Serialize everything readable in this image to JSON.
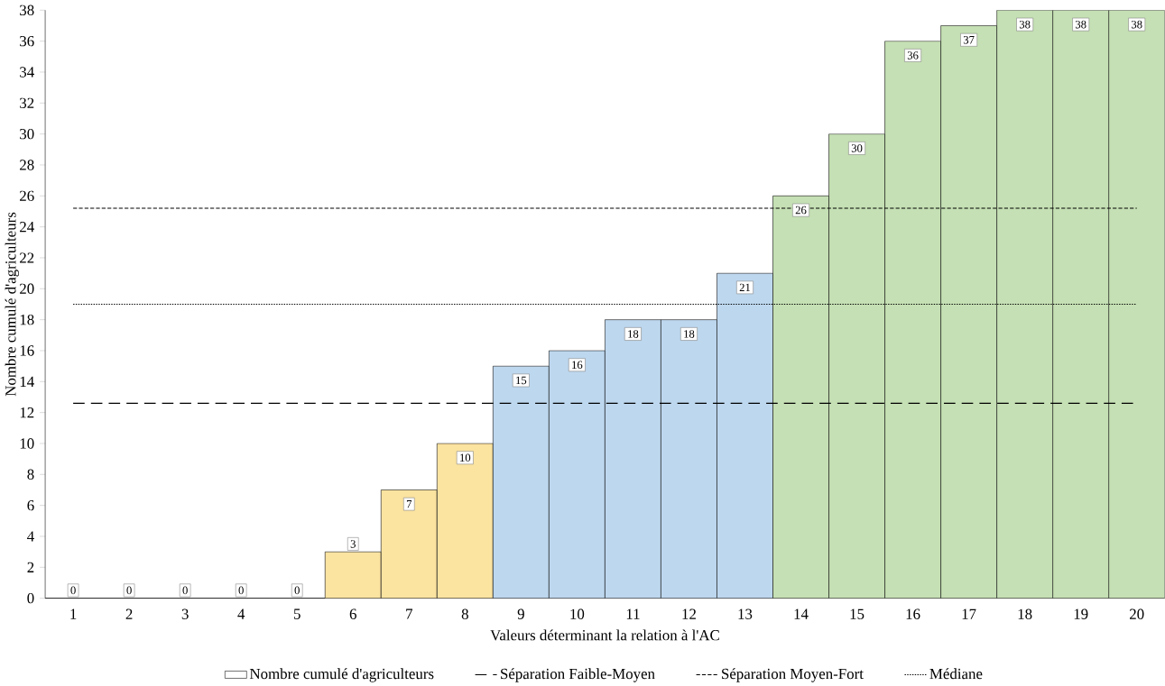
{
  "chart_data": {
    "type": "bar",
    "xlabel": "Valeurs déterminant la relation à l'AC",
    "ylabel": "Nombre cumulé d'agriculteurs",
    "categories": [
      "1",
      "2",
      "3",
      "4",
      "5",
      "6",
      "7",
      "8",
      "9",
      "10",
      "11",
      "12",
      "13",
      "14",
      "15",
      "16",
      "17",
      "18",
      "19",
      "20"
    ],
    "series": [
      {
        "name": "Nombre cumulé d'agriculteurs",
        "values": [
          0,
          0,
          0,
          0,
          0,
          3,
          7,
          10,
          15,
          16,
          18,
          18,
          21,
          26,
          30,
          36,
          37,
          38,
          38,
          38
        ],
        "colors": [
          "#ffffff",
          "#ffffff",
          "#ffffff",
          "#ffffff",
          "#ffffff",
          "#fbe3a0",
          "#fbe3a0",
          "#fbe3a0",
          "#bdd7ee",
          "#bdd7ee",
          "#bdd7ee",
          "#bdd7ee",
          "#bdd7ee",
          "#c5e0b4",
          "#c5e0b4",
          "#c5e0b4",
          "#c5e0b4",
          "#c5e0b4",
          "#c5e0b4",
          "#c5e0b4"
        ]
      }
    ],
    "data_labels": true,
    "ylim": [
      0,
      38
    ],
    "yticks": [
      0,
      2,
      4,
      6,
      8,
      10,
      12,
      14,
      16,
      18,
      20,
      22,
      24,
      26,
      28,
      30,
      32,
      34,
      36,
      38
    ],
    "ref_lines": [
      {
        "axis": "y",
        "value": 12.6,
        "label": "Séparation Faible-Moyen",
        "line_style": "dashed",
        "color": "#000000"
      },
      {
        "axis": "y",
        "value": 25.2,
        "label": "Séparation Moyen-Fort",
        "line_style": "dashed",
        "color": "#000000"
      },
      {
        "axis": "y",
        "value": 19,
        "label": "Médiane",
        "line_style": "dotted",
        "color": "#000000"
      }
    ],
    "grid": false,
    "legend": "bottom"
  }
}
